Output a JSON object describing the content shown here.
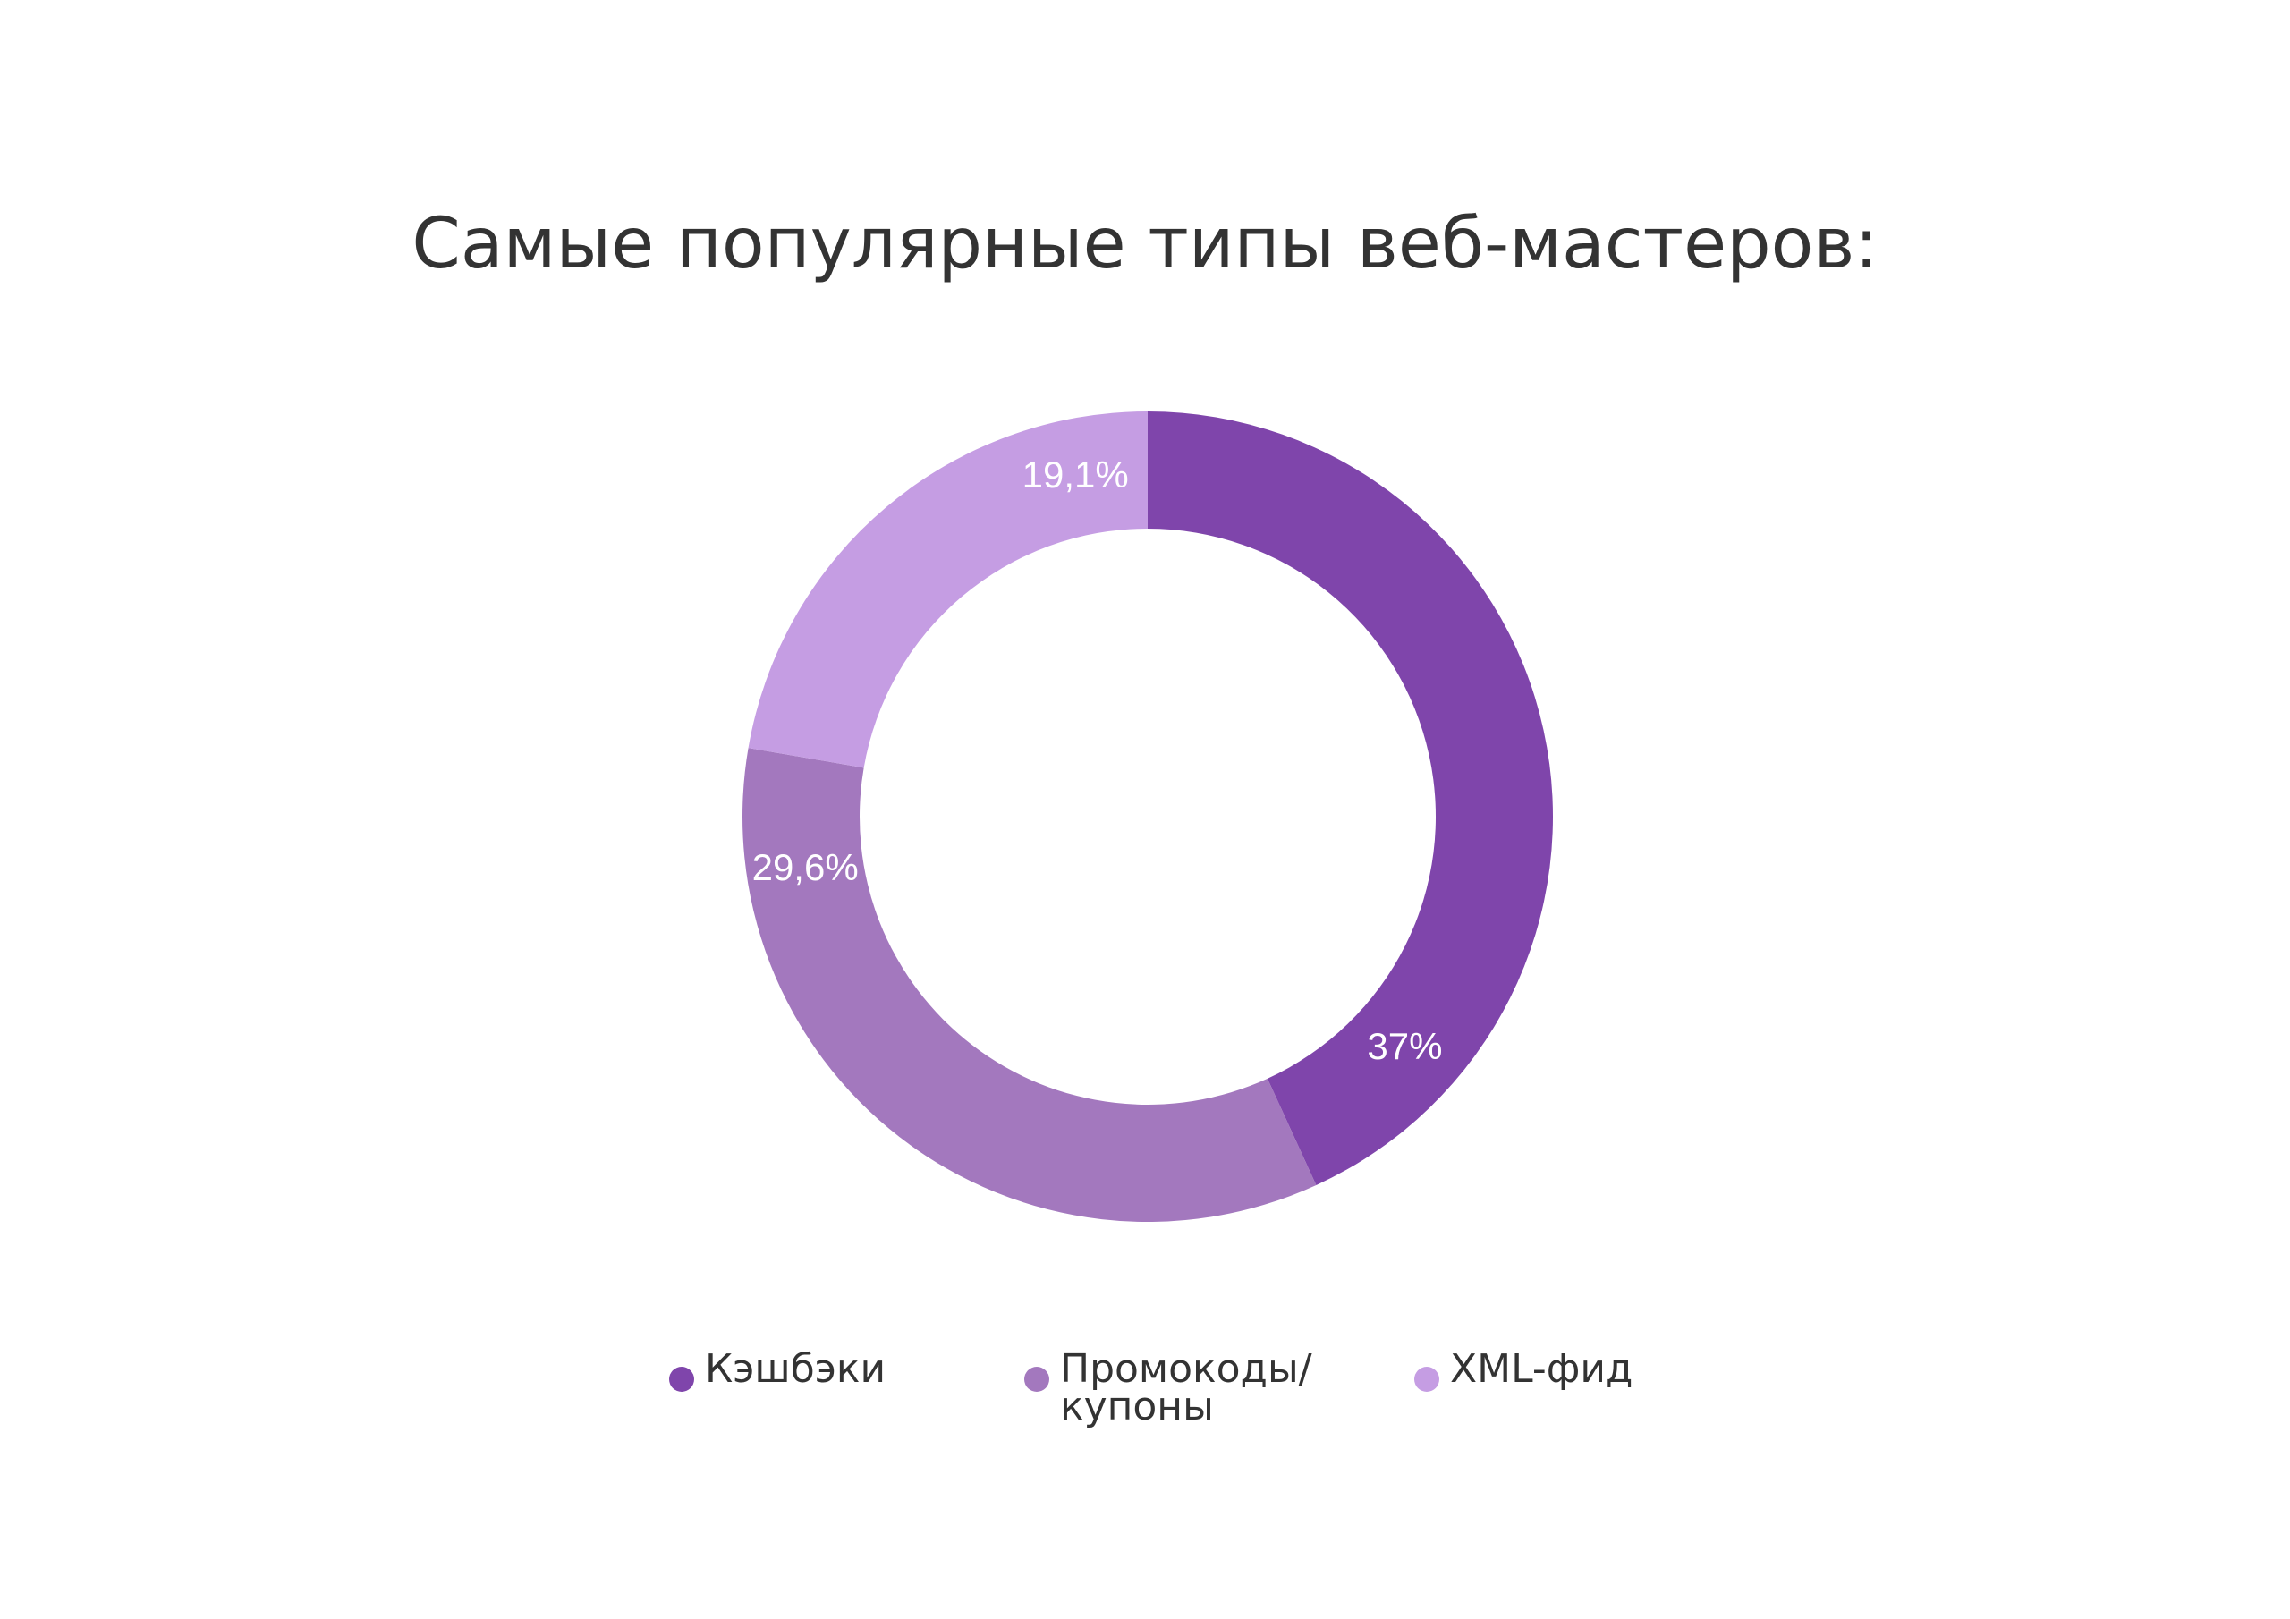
{
  "chart_data": {
    "type": "donut",
    "title": "Самые популярные типы веб-мастеров:",
    "series": [
      {
        "name": "Кэшбэки",
        "value": 37,
        "label": "37%",
        "color": "#7f45ab"
      },
      {
        "name": "Промокоды/ купоны",
        "value": 29.6,
        "label": "29,6%",
        "color": "#a378be"
      },
      {
        "name": "XML-фид",
        "value": 19.1,
        "label": "19,1%",
        "color": "#c59de3"
      }
    ],
    "legend": {
      "position": "bottom",
      "items": [
        {
          "label": "Кэшбэки",
          "color": "#7f45ab"
        },
        {
          "label": "Промокоды/\nкупоны",
          "color": "#a378be"
        },
        {
          "label": "XML-фид",
          "color": "#c59de3"
        }
      ]
    }
  }
}
